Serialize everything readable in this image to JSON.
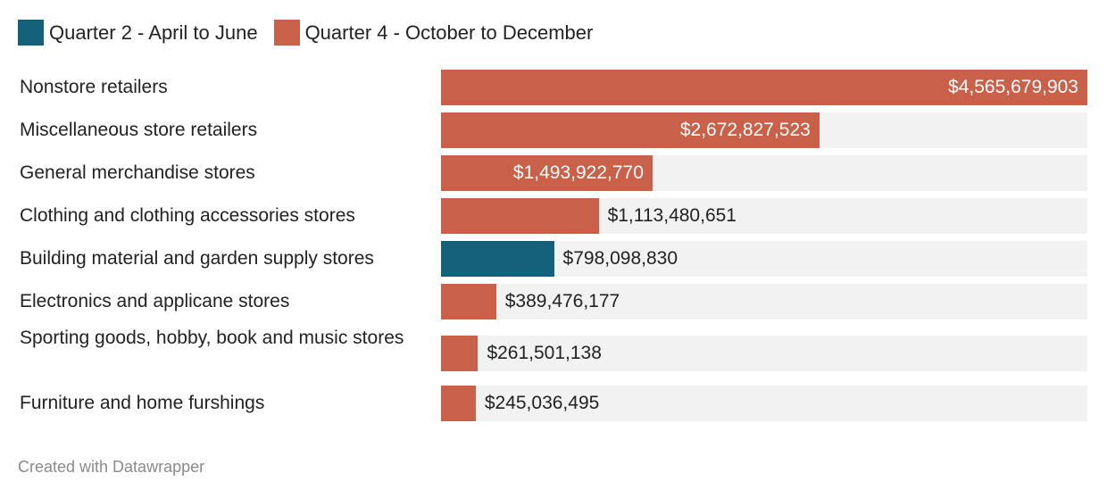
{
  "chart_data": {
    "type": "bar",
    "orientation": "horizontal",
    "legend": [
      {
        "name": "Quarter 2 - April to June",
        "color": "#15607a"
      },
      {
        "name": "Quarter 4 - October to December",
        "color": "#c9614a"
      }
    ],
    "legend_placement": "top-left",
    "categories": [
      "Nonstore retailers",
      "Miscellaneous store retailers",
      "General merchandise stores",
      "Clothing and clothing accessories stores",
      "Building material and garden supply stores",
      "Electronics and applicane stores",
      "Sporting goods, hobby, book and music stores",
      "Furniture and home furshings"
    ],
    "values": [
      4565679903,
      2672827523,
      1493922770,
      1113480651,
      798098830,
      389476177,
      261501138,
      245036495
    ],
    "value_labels": [
      "$4,565,679,903",
      "$2,672,827,523",
      "$1,493,922,770",
      "$1,113,480,651",
      "$798,098,830",
      "$389,476,177",
      "$261,501,138",
      "$245,036,495"
    ],
    "series_of_bar": [
      "Quarter 4 - October to December",
      "Quarter 4 - October to December",
      "Quarter 4 - October to December",
      "Quarter 4 - October to December",
      "Quarter 2 - April to June",
      "Quarter 4 - October to December",
      "Quarter 4 - October to December",
      "Quarter 4 - October to December"
    ],
    "xlim": [
      0,
      4565679903
    ],
    "grid": false
  },
  "footer": {
    "credit": "Created with Datawrapper"
  }
}
